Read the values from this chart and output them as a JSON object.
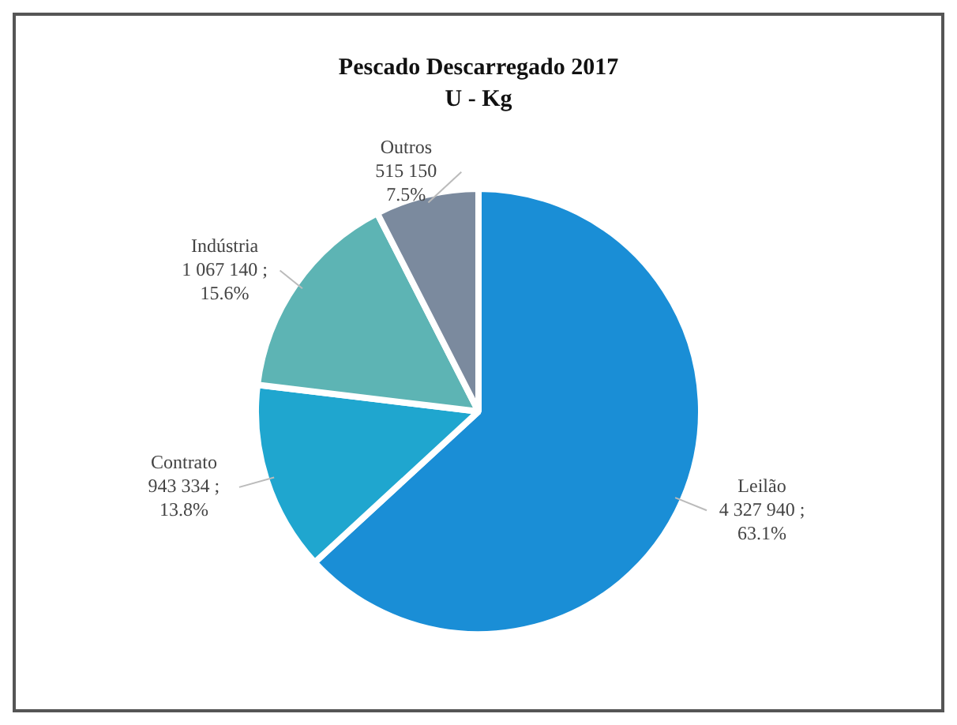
{
  "chart_data": {
    "type": "pie",
    "title": "Pescado Descarregado 2017",
    "subtitle": "U - Kg",
    "categories": [
      "Leilão",
      "Contrato",
      "Indústria",
      "Outros"
    ],
    "values": [
      4327940,
      943334,
      1067140,
      515150
    ],
    "colors": [
      "#1a8ed6",
      "#1fa6cf",
      "#5db4b4",
      "#7b8a9e"
    ],
    "value_labels": [
      "4 327 940 ;\n63.1%",
      "943 334 ;\n13.8%",
      "1 067 140 ;\n15.6%",
      "515 150\n7.5%"
    ],
    "legend": false
  }
}
